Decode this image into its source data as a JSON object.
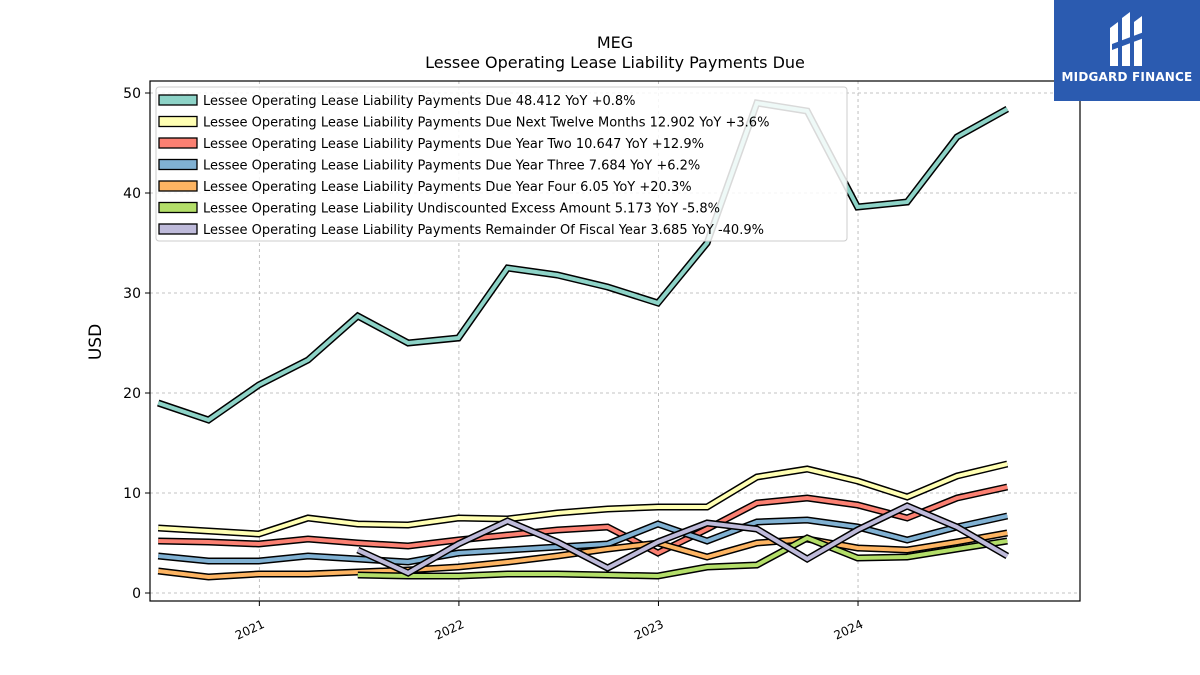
{
  "brand": {
    "name": "MIDGARD FINANCE"
  },
  "chart_data": {
    "type": "line",
    "title": "MEG",
    "subtitle": "Lessee Operating Lease Liability Payments Due",
    "ylabel": "USD",
    "xlabel": "",
    "ylim": [
      -0.8,
      51.2
    ],
    "xlim": [
      "2020-06-15",
      "2025-02-10"
    ],
    "y_ticks": [
      0,
      10,
      20,
      30,
      40,
      50
    ],
    "x_ticks": [
      "2021-01-01",
      "2022-01-01",
      "2023-01-01",
      "2024-01-01"
    ],
    "x_tick_labels": [
      "2021",
      "2022",
      "2023",
      "2024"
    ],
    "grid": true,
    "legend_position": "upper-left",
    "x": [
      "2020-06-30",
      "2020-09-30",
      "2020-12-31",
      "2021-03-31",
      "2021-06-30",
      "2021-09-30",
      "2021-12-31",
      "2022-03-31",
      "2022-06-30",
      "2022-09-30",
      "2022-12-31",
      "2023-03-31",
      "2023-06-30",
      "2023-09-30",
      "2023-12-31",
      "2024-03-31",
      "2024-06-30",
      "2024-09-30"
    ],
    "series": [
      {
        "name": "Lessee Operating Lease Liability Payments Due",
        "legend_label": "Lessee Operating Lease Liability Payments Due  48.412 YoY +0.8%",
        "color": "#8dd3c7",
        "values": [
          19.0,
          17.3,
          20.8,
          23.3,
          27.7,
          25.0,
          25.5,
          32.5,
          31.8,
          30.6,
          29.0,
          35.0,
          49.0,
          48.2,
          38.6,
          39.1,
          45.6,
          48.4
        ]
      },
      {
        "name": "Lessee Operating Lease Liability Payments Due Next Twelve Months",
        "legend_label": "Lessee Operating Lease Liability Payments Due Next Twelve Months  12.902 YoY +3.6%",
        "color": "#ffffb3",
        "values": [
          6.5,
          6.2,
          5.9,
          7.5,
          6.9,
          6.8,
          7.5,
          7.4,
          8.0,
          8.4,
          8.6,
          8.6,
          11.6,
          12.4,
          11.2,
          9.6,
          11.7,
          12.9
        ]
      },
      {
        "name": "Lessee Operating Lease Liability Payments Due Year Two",
        "legend_label": "Lessee Operating Lease Liability Payments Due Year Two  10.647 YoY +12.9%",
        "color": "#fb8072",
        "values": [
          5.2,
          5.1,
          4.9,
          5.4,
          5.0,
          4.7,
          5.3,
          5.8,
          6.3,
          6.6,
          4.0,
          6.4,
          9.0,
          9.5,
          8.8,
          7.5,
          9.5,
          10.6
        ]
      },
      {
        "name": "Lessee Operating Lease Liability Payments Due Year Three",
        "legend_label": "Lessee Operating Lease Liability Payments Due Year Three  7.684 YoY +6.2%",
        "color": "#80b1d3",
        "values": [
          3.7,
          3.2,
          3.2,
          3.7,
          3.4,
          3.1,
          4.0,
          4.3,
          4.6,
          4.9,
          6.9,
          5.2,
          7.1,
          7.3,
          6.6,
          5.3,
          6.6,
          7.7
        ]
      },
      {
        "name": "Lessee Operating Lease Liability Payments Due Year Four",
        "legend_label": "Lessee Operating Lease Liability Payments Due Year Four  6.05 YoY +20.3%",
        "color": "#fdb462",
        "values": [
          2.2,
          1.6,
          1.9,
          1.9,
          2.1,
          2.3,
          2.6,
          3.1,
          3.7,
          4.4,
          5.0,
          3.6,
          5.0,
          5.4,
          4.5,
          4.3,
          5.1,
          6.0
        ]
      },
      {
        "name": "Lessee Operating Lease Liability Undiscounted Excess Amount",
        "legend_label": "Lessee Operating Lease Liability Undiscounted Excess Amount  5.173 YoY -5.8%",
        "color": "#b3de69",
        "values": [
          null,
          null,
          null,
          null,
          1.8,
          1.7,
          1.7,
          1.9,
          1.9,
          1.8,
          1.7,
          2.6,
          2.8,
          5.5,
          3.5,
          3.6,
          4.4,
          5.2
        ]
      },
      {
        "name": "Lessee Operating Lease Liability Payments Remainder Of Fiscal Year",
        "legend_label": "Lessee Operating Lease Liability Payments Remainder Of Fiscal Year  3.685 YoY -40.9%",
        "color": "#bebada",
        "values": [
          null,
          null,
          null,
          null,
          4.3,
          2.0,
          4.9,
          7.2,
          5.1,
          2.5,
          5.1,
          7.0,
          6.4,
          3.4,
          6.3,
          8.7,
          6.6,
          3.7
        ]
      }
    ]
  }
}
